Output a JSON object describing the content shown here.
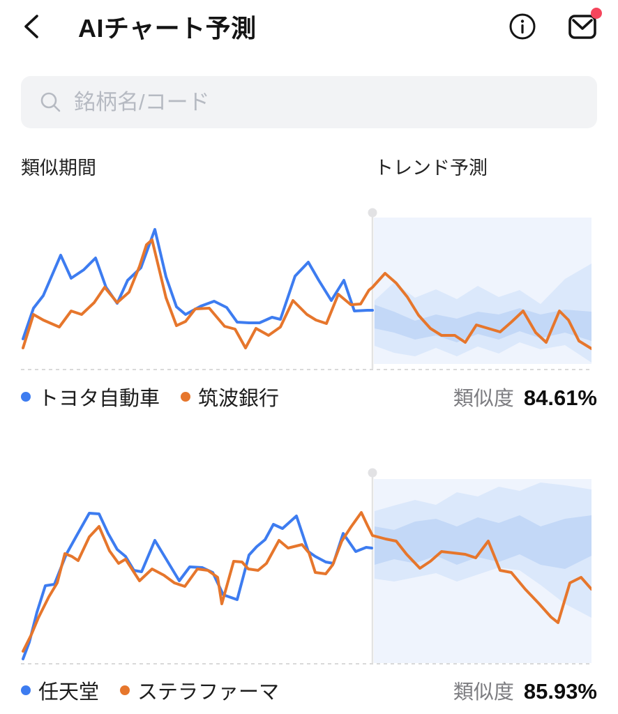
{
  "header": {
    "title": "AIチャート予測"
  },
  "search": {
    "placeholder": "銘柄名/コード"
  },
  "section_labels": {
    "similar_period": "類似期間",
    "trend_forecast": "トレンド予測"
  },
  "similarity_label": "類似度",
  "colors": {
    "line_blue": "#3d7cf0",
    "line_orange": "#e6762c",
    "forecast_bg": "#eff4fd",
    "band_outer": "#dbe8fb",
    "band_inner": "#c3d8f7",
    "divider": "#e3e3e3",
    "divider_dot": "#e2e2e4",
    "baseline": "#d9d9d9",
    "notification_badge": "#f5455c",
    "icon_dark": "#141414",
    "search_gray": "#b6bac2"
  },
  "charts": [
    {
      "similarity_value": "84.61%",
      "legend": [
        {
          "name": "トヨタ自動車",
          "color": "#3d7cf0"
        },
        {
          "name": "筑波銀行",
          "color": "#e6762c"
        }
      ],
      "chart_data": {
        "type": "line",
        "x_range": [
          30,
          848
        ],
        "y_range": [
          298,
          532
        ],
        "divider_x": 534,
        "divider_dot_y": 306,
        "forecast_region": {
          "x": [
            536,
            848
          ],
          "y": [
            313,
            523
          ]
        },
        "series": [
          {
            "name": "トヨタ自動車",
            "color": "#3d7cf0",
            "points": [
              [
                33,
                487
              ],
              [
                48,
                443
              ],
              [
                62,
                425
              ],
              [
                87,
                367
              ],
              [
                102,
                400
              ],
              [
                120,
                388
              ],
              [
                137,
                371
              ],
              [
                152,
                413
              ],
              [
                168,
                436
              ],
              [
                183,
                403
              ],
              [
                202,
                385
              ],
              [
                222,
                330
              ],
              [
                238,
                398
              ],
              [
                253,
                441
              ],
              [
                266,
                452
              ],
              [
                288,
                440
              ],
              [
                307,
                433
              ],
              [
                325,
                442
              ],
              [
                340,
                463
              ],
              [
                357,
                464
              ],
              [
                372,
                464
              ],
              [
                390,
                456
              ],
              [
                402,
                459
              ],
              [
                423,
                397
              ],
              [
                442,
                377
              ],
              [
                457,
                403
              ],
              [
                475,
                432
              ],
              [
                493,
                403
              ],
              [
                508,
                447
              ],
              [
                527,
                446
              ],
              [
                534,
                446
              ]
            ]
          },
          {
            "name": "筑波銀行",
            "color": "#e6762c",
            "points": [
              [
                33,
                500
              ],
              [
                48,
                452
              ],
              [
                62,
                460
              ],
              [
                85,
                470
              ],
              [
                102,
                447
              ],
              [
                117,
                452
              ],
              [
                135,
                435
              ],
              [
                150,
                413
              ],
              [
                168,
                435
              ],
              [
                185,
                420
              ],
              [
                200,
                383
              ],
              [
                210,
                352
              ],
              [
                218,
                345
              ],
              [
                238,
                428
              ],
              [
                253,
                468
              ],
              [
                266,
                462
              ],
              [
                280,
                444
              ],
              [
                300,
                443
              ],
              [
                322,
                469
              ],
              [
                337,
                473
              ],
              [
                352,
                500
              ],
              [
                367,
                472
              ],
              [
                385,
                482
              ],
              [
                402,
                470
              ],
              [
                420,
                432
              ],
              [
                440,
                452
              ],
              [
                453,
                460
              ],
              [
                468,
                465
              ],
              [
                485,
                423
              ],
              [
                503,
                438
              ],
              [
                517,
                437
              ],
              [
                529,
                417
              ],
              [
                534,
                413
              ],
              [
                552,
                393
              ],
              [
                568,
                407
              ],
              [
                584,
                427
              ],
              [
                600,
                453
              ],
              [
                617,
                472
              ],
              [
                633,
                482
              ],
              [
                652,
                482
              ],
              [
                667,
                492
              ],
              [
                683,
                467
              ],
              [
                700,
                472
              ],
              [
                717,
                477
              ],
              [
                733,
                463
              ],
              [
                750,
                447
              ],
              [
                768,
                478
              ],
              [
                783,
                492
              ],
              [
                802,
                447
              ],
              [
                815,
                460
              ],
              [
                830,
                490
              ],
              [
                848,
                501
              ]
            ]
          }
        ],
        "bands": {
          "x": [
            537,
            565,
            595,
            625,
            655,
            685,
            715,
            745,
            775,
            810,
            848
          ],
          "outer_top": [
            432,
            406,
            428,
            416,
            430,
            411,
            427,
            417,
            437,
            401,
            379
          ],
          "outer_bottom": [
            497,
            507,
            512,
            500,
            512,
            498,
            508,
            492,
            502,
            496,
            521
          ],
          "inner_top": [
            438,
            448,
            461,
            452,
            458,
            448,
            452,
            443,
            452,
            445,
            448
          ],
          "inner_bottom": [
            472,
            478,
            488,
            482,
            492,
            480,
            488,
            476,
            486,
            478,
            490
          ]
        }
      }
    },
    {
      "similarity_value": "85.93%",
      "legend": [
        {
          "name": "任天堂",
          "color": "#3d7cf0"
        },
        {
          "name": "ステラファーマ",
          "color": "#e6762c"
        }
      ],
      "chart_data": {
        "type": "line",
        "x_range": [
          30,
          848
        ],
        "y_range": [
          672,
          955
        ],
        "divider_x": 534,
        "divider_dot_y": 680,
        "forecast_region": {
          "x": [
            536,
            848
          ],
          "y": [
            689,
            953
          ]
        },
        "series": [
          {
            "name": "任天堂",
            "color": "#3d7cf0",
            "points": [
              [
                33,
                947
              ],
              [
                42,
                923
              ],
              [
                53,
                880
              ],
              [
                65,
                842
              ],
              [
                78,
                840
              ],
              [
                95,
                797
              ],
              [
                110,
                770
              ],
              [
                128,
                738
              ],
              [
                142,
                739
              ],
              [
                155,
                767
              ],
              [
                168,
                790
              ],
              [
                180,
                800
              ],
              [
                192,
                820
              ],
              [
                203,
                822
              ],
              [
                222,
                777
              ],
              [
                257,
                835
              ],
              [
                272,
                815
              ],
              [
                290,
                816
              ],
              [
                305,
                823
              ],
              [
                320,
                855
              ],
              [
                340,
                862
              ],
              [
                357,
                798
              ],
              [
                368,
                786
              ],
              [
                380,
                776
              ],
              [
                392,
                754
              ],
              [
                405,
                760
              ],
              [
                425,
                742
              ],
              [
                442,
                793
              ],
              [
                452,
                800
              ],
              [
                467,
                808
              ],
              [
                478,
                810
              ],
              [
                492,
                767
              ],
              [
                510,
                793
              ],
              [
                525,
                787
              ],
              [
                533,
                788
              ]
            ]
          },
          {
            "name": "ステラファーマ",
            "color": "#e6762c",
            "points": [
              [
                33,
                936
              ],
              [
                45,
                912
              ],
              [
                55,
                888
              ],
              [
                70,
                858
              ],
              [
                82,
                838
              ],
              [
                93,
                796
              ],
              [
                103,
                800
              ],
              [
                112,
                806
              ],
              [
                128,
                772
              ],
              [
                142,
                757
              ],
              [
                157,
                792
              ],
              [
                170,
                810
              ],
              [
                180,
                804
              ],
              [
                200,
                835
              ],
              [
                218,
                818
              ],
              [
                235,
                827
              ],
              [
                250,
                838
              ],
              [
                265,
                843
              ],
              [
                283,
                818
              ],
              [
                298,
                820
              ],
              [
                312,
                830
              ],
              [
                318,
                868
              ],
              [
                335,
                807
              ],
              [
                347,
                808
              ],
              [
                356,
                818
              ],
              [
                370,
                820
              ],
              [
                382,
                810
              ],
              [
                400,
                777
              ],
              [
                413,
                788
              ],
              [
                433,
                783
              ],
              [
                443,
                795
              ],
              [
                452,
                823
              ],
              [
                467,
                825
              ],
              [
                477,
                812
              ],
              [
                490,
                778
              ],
              [
                503,
                758
              ],
              [
                518,
                737
              ],
              [
                527,
                756
              ],
              [
                534,
                770
              ],
              [
                553,
                775
              ],
              [
                568,
                778
              ],
              [
                583,
                797
              ],
              [
                602,
                817
              ],
              [
                617,
                807
              ],
              [
                633,
                793
              ],
              [
                650,
                795
              ],
              [
                667,
                797
              ],
              [
                682,
                802
              ],
              [
                700,
                778
              ],
              [
                717,
                820
              ],
              [
                733,
                823
              ],
              [
                753,
                847
              ],
              [
                773,
                868
              ],
              [
                790,
                887
              ],
              [
                800,
                895
              ],
              [
                817,
                838
              ],
              [
                833,
                830
              ],
              [
                848,
                847
              ]
            ]
          }
        ],
        "bands": {
          "x": [
            537,
            565,
            595,
            625,
            655,
            685,
            715,
            745,
            775,
            810,
            848
          ],
          "outer_top": [
            735,
            727,
            719,
            726,
            708,
            714,
            700,
            706,
            694,
            698,
            704
          ],
          "outer_bottom": [
            832,
            836,
            830,
            824,
            836,
            826,
            816,
            820,
            841,
            868,
            888
          ],
          "inner_top": [
            757,
            762,
            750,
            746,
            757,
            744,
            752,
            741,
            757,
            746,
            741
          ],
          "inner_bottom": [
            812,
            804,
            810,
            799,
            812,
            801,
            808,
            797,
            812,
            818,
            799
          ]
        }
      }
    }
  ]
}
